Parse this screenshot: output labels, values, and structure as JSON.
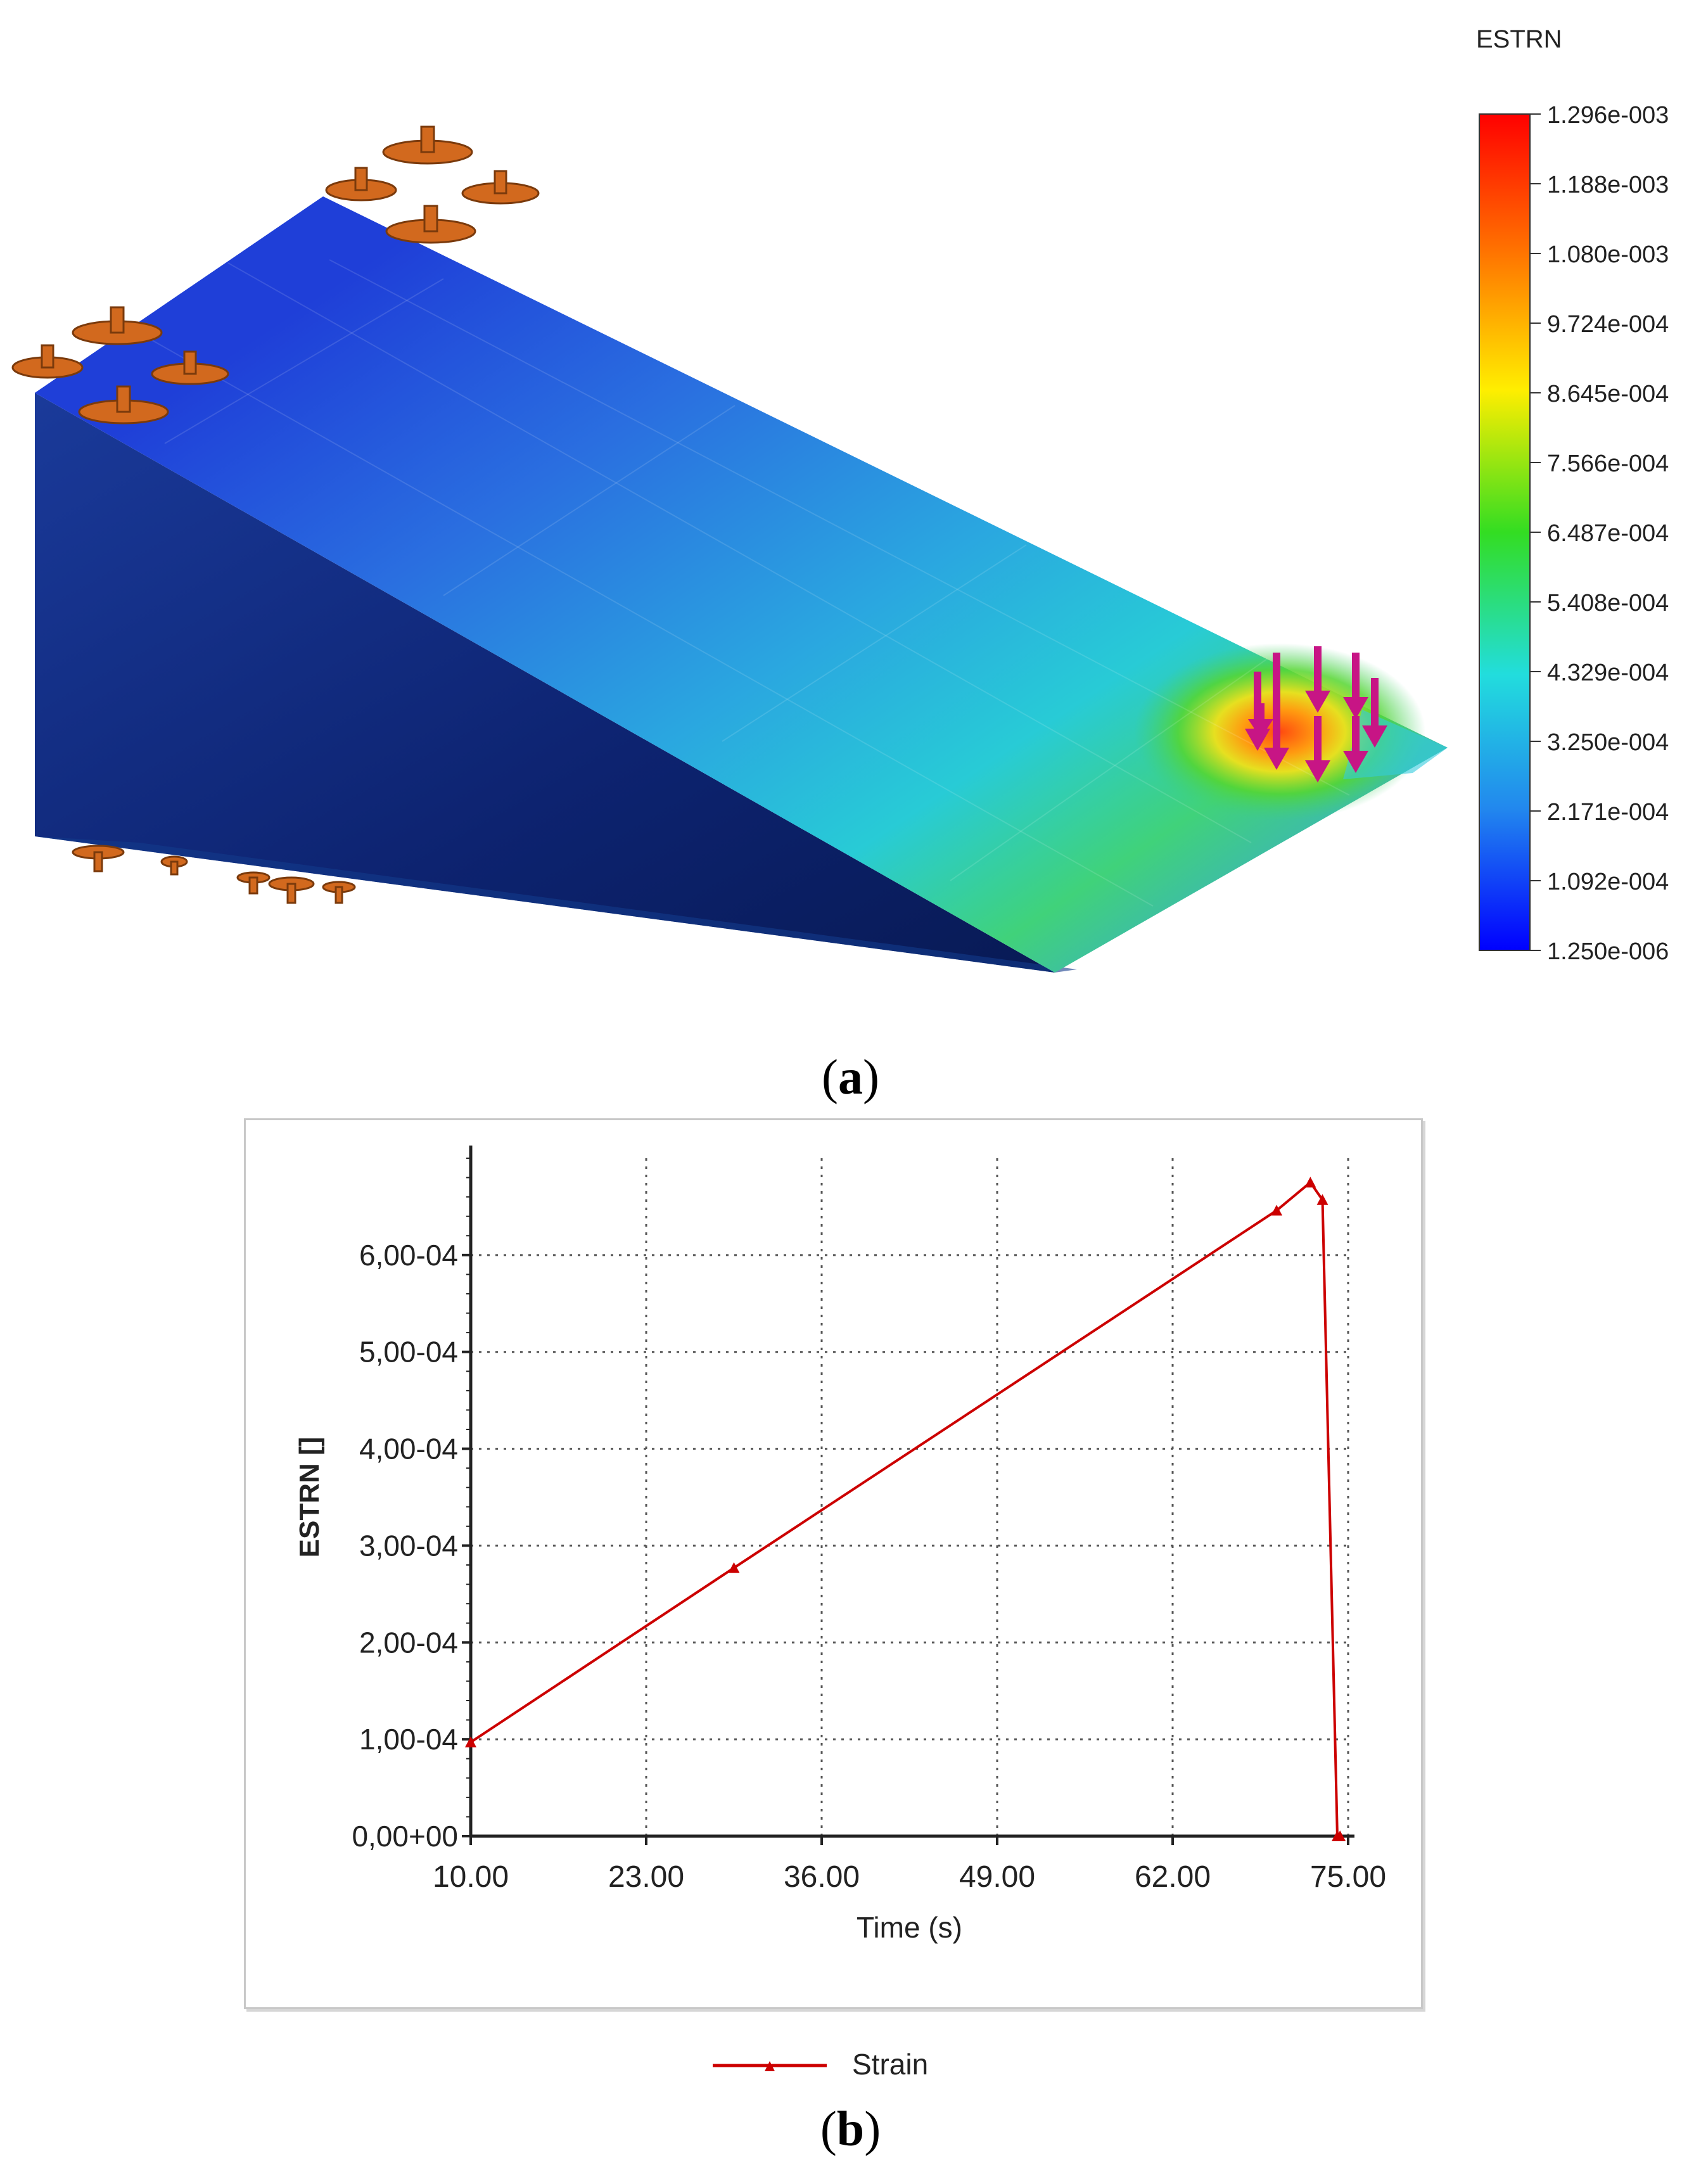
{
  "figure_a": {
    "colorbar_title": "ESTRN",
    "colorbar_ticks": [
      "1.296e-003",
      "1.188e-003",
      "1.080e-003",
      "9.724e-004",
      "8.645e-004",
      "7.566e-004",
      "6.487e-004",
      "5.408e-004",
      "4.329e-004",
      "3.250e-004",
      "2.171e-004",
      "1.092e-004",
      "1.250e-006"
    ],
    "colormap": [
      "#ff0000",
      "#ff5a00",
      "#ff9900",
      "#ffdd00",
      "#ddee00",
      "#99ee22",
      "#33dd22",
      "#22dd77",
      "#22dddd",
      "#22aaee",
      "#2277ee",
      "#1144ee",
      "#0000ff"
    ],
    "fixture_color": "#d2691e",
    "load_arrow_color": "#c71585"
  },
  "caption_a": {
    "open": "(",
    "letter": "a",
    "close": ")"
  },
  "caption_b": {
    "open": "(",
    "letter": "b",
    "close": ")"
  },
  "chart_data": {
    "type": "line",
    "xlabel": "Time (s)",
    "ylabel": "ESTRN []",
    "x_ticks": [
      "10.00",
      "23.00",
      "36.00",
      "49.00",
      "62.00",
      "75.00"
    ],
    "y_ticks": [
      "0,00+00",
      "1,00-04",
      "2,00-04",
      "3,00-04",
      "4,00-04",
      "5,00-04",
      "6,00-04"
    ],
    "xlim": [
      10,
      75
    ],
    "ylim": [
      0,
      0.0007
    ],
    "grid": true,
    "legend_position": "bottom",
    "series": [
      {
        "name": "Strain",
        "color": "#cc0000",
        "x": [
          10.0,
          29.5,
          69.7,
          72.2,
          73.1,
          74.2,
          74.4
        ],
        "y": [
          9.7e-05,
          0.000277,
          0.000646,
          0.000675,
          0.000657,
          0.0,
          0.0
        ]
      }
    ]
  }
}
